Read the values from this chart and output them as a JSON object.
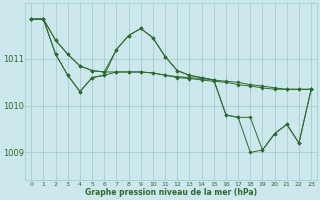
{
  "bg_color": "#cce8ec",
  "grid_color": "#9fc8cc",
  "line_color": "#2d6b2d",
  "title": "Graphe pression niveau de la mer (hPa)",
  "xlim": [
    -0.5,
    23.5
  ],
  "ylim": [
    1008.4,
    1012.2
  ],
  "yticks": [
    1009,
    1010,
    1011
  ],
  "xticks": [
    0,
    1,
    2,
    3,
    4,
    5,
    6,
    7,
    8,
    9,
    10,
    11,
    12,
    13,
    14,
    15,
    16,
    17,
    18,
    19,
    20,
    21,
    22,
    23
  ],
  "series": [
    {
      "x": [
        0,
        1,
        2,
        3,
        4,
        5,
        6,
        7,
        8,
        9,
        10,
        11,
        12,
        13,
        14,
        15,
        16,
        17,
        18,
        19,
        20,
        21,
        22,
        23
      ],
      "y": [
        1011.85,
        1011.85,
        1011.4,
        1011.1,
        1010.85,
        1010.75,
        1010.72,
        1010.72,
        1010.72,
        1010.72,
        1010.7,
        1010.65,
        1010.62,
        1010.6,
        1010.58,
        1010.55,
        1010.52,
        1010.5,
        1010.45,
        1010.42,
        1010.38,
        1010.35,
        1010.35,
        1010.35
      ]
    },
    {
      "x": [
        0,
        1,
        2,
        3,
        4,
        5,
        6,
        7,
        8,
        9,
        10,
        11,
        12,
        13,
        14,
        15,
        16,
        17,
        18,
        19,
        20,
        21,
        22,
        23
      ],
      "y": [
        1011.85,
        1011.85,
        1011.1,
        1010.65,
        1010.3,
        1010.6,
        1010.65,
        1010.72,
        1010.72,
        1010.72,
        1010.7,
        1010.65,
        1010.6,
        1010.58,
        1010.55,
        1010.52,
        1010.5,
        1010.45,
        1010.42,
        1010.38,
        1010.35,
        1010.35,
        1010.35,
        1010.35
      ]
    },
    {
      "x": [
        0,
        1,
        2,
        3,
        4,
        5,
        6,
        7,
        8,
        9,
        10,
        11,
        12,
        13,
        14,
        15,
        16,
        17,
        18,
        19,
        20,
        21,
        22,
        23
      ],
      "y": [
        1011.85,
        1011.85,
        1011.4,
        1011.1,
        1010.85,
        1010.75,
        1010.72,
        1011.2,
        1011.5,
        1011.65,
        1011.45,
        1011.05,
        1010.75,
        1010.65,
        1010.6,
        1010.55,
        1009.8,
        1009.75,
        1009.75,
        1009.05,
        1009.4,
        1009.6,
        1009.2,
        1010.35
      ]
    },
    {
      "x": [
        0,
        1,
        2,
        3,
        4,
        5,
        6,
        7,
        8,
        9,
        10,
        11,
        12,
        13,
        14,
        15,
        16,
        17,
        18,
        19,
        20,
        21,
        22,
        23
      ],
      "y": [
        1011.85,
        1011.85,
        1011.1,
        1010.65,
        1010.3,
        1010.6,
        1010.65,
        1011.2,
        1011.5,
        1011.65,
        1011.45,
        1011.05,
        1010.75,
        1010.65,
        1010.6,
        1010.55,
        1009.8,
        1009.75,
        1009.0,
        1009.05,
        1009.4,
        1009.6,
        1009.2,
        1010.35
      ]
    }
  ]
}
